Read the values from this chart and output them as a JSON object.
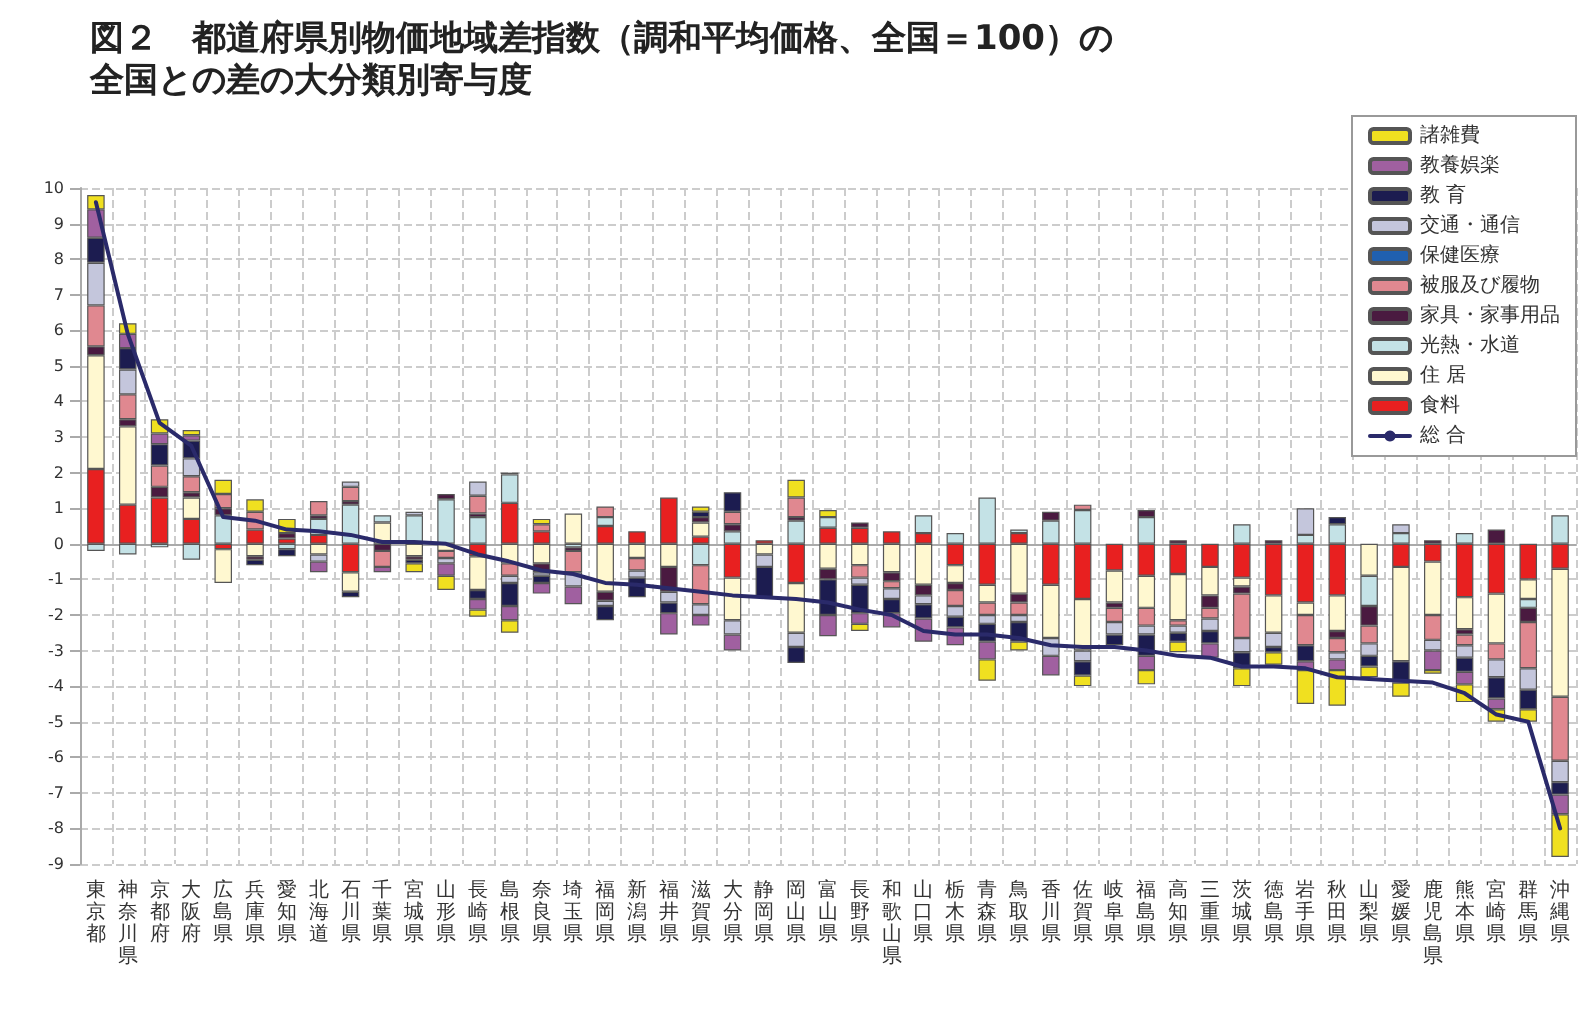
{
  "chart_data": {
    "type": "bar",
    "stacked": true,
    "title": "図２　都道府県別物価地域差指数（調和平均価格、全国＝100）の",
    "subtitle": "全国との差の大分類別寄与度",
    "categories": [
      "東京都",
      "神奈川県",
      "京都府",
      "大阪府",
      "広島県",
      "兵庫県",
      "愛知県",
      "北海道",
      "石川県",
      "千葉県",
      "宮城県",
      "山形県",
      "長崎県",
      "島根県",
      "奈良県",
      "埼玉県",
      "福岡県",
      "新潟県",
      "福井県",
      "滋賀県",
      "大分県",
      "静岡県",
      "岡山県",
      "富山県",
      "長野県",
      "和歌山県",
      "山口県",
      "栃木県",
      "青森県",
      "鳥取県",
      "香川県",
      "佐賀県",
      "岐阜県",
      "福島県",
      "高知県",
      "三重県",
      "茨城県",
      "徳島県",
      "岩手県",
      "秋田県",
      "山梨県",
      "愛媛県",
      "鹿児島県",
      "熊本県",
      "宮崎県",
      "群馬県",
      "沖縄県"
    ],
    "ylim": [
      -9,
      10
    ],
    "yticks": [
      -9,
      -8,
      -7,
      -6,
      -5,
      -4,
      -3,
      -2,
      -1,
      0,
      1,
      2,
      3,
      4,
      5,
      6,
      7,
      8,
      9,
      10
    ],
    "grid": true,
    "legend": "top right",
    "series": [
      {
        "name": "食料",
        "color": "#e82020",
        "values": [
          2.1,
          1.1,
          1.3,
          0.7,
          -0.15,
          0.4,
          0.15,
          0.25,
          -0.8,
          null,
          null,
          null,
          -0.35,
          1.15,
          0.35,
          null,
          0.5,
          0.35,
          1.3,
          0.2,
          -0.95,
          0.1,
          -1.1,
          0.45,
          0.45,
          0.35,
          0.3,
          -0.6,
          -1.15,
          0.3,
          -1.15,
          -1.55,
          -0.75,
          -0.9,
          -0.85,
          -0.65,
          -0.95,
          -1.45,
          -1.65,
          -1.45,
          null,
          -0.65,
          -0.5,
          -1.5,
          -1.4,
          -1.0,
          -0.7
        ]
      },
      {
        "name": "住 居",
        "color": "#fff8d0",
        "values": [
          3.2,
          2.2,
          null,
          0.6,
          -0.95,
          -0.35,
          null,
          -0.3,
          -0.55,
          0.6,
          -0.35,
          -0.2,
          -0.95,
          -0.55,
          -0.55,
          0.85,
          -1.35,
          -0.4,
          -0.65,
          0.4,
          -1.2,
          -0.3,
          -1.4,
          -0.7,
          -0.6,
          -0.8,
          -1.15,
          -0.5,
          -0.5,
          -1.4,
          -1.5,
          -1.45,
          -0.9,
          -0.9,
          -1.3,
          -0.8,
          -0.25,
          -1.05,
          -0.35,
          -1.0,
          -0.9,
          -2.65,
          -1.5,
          -0.9,
          -1.4,
          -0.55,
          -3.6
        ]
      },
      {
        "name": "光熱・水道",
        "color": "#c4e2e6",
        "values": [
          -0.2,
          -0.3,
          -0.1,
          -0.45,
          0.8,
          null,
          -0.15,
          0.45,
          1.1,
          0.2,
          0.8,
          1.25,
          0.75,
          0.8,
          null,
          -0.1,
          0.25,
          null,
          null,
          -0.6,
          0.35,
          null,
          0.65,
          0.3,
          null,
          null,
          0.5,
          0.3,
          1.3,
          0.1,
          0.65,
          0.95,
          null,
          0.75,
          null,
          null,
          0.55,
          null,
          0.25,
          0.55,
          -0.85,
          0.3,
          null,
          0.3,
          null,
          -0.25,
          0.8
        ]
      },
      {
        "name": "家具・家事用品",
        "color": "#4a1a40",
        "values": [
          0.25,
          0.2,
          0.3,
          0.15,
          0.2,
          -0.1,
          0.15,
          0.1,
          0.1,
          -0.2,
          -0.1,
          0.15,
          0.1,
          0.05,
          -0.25,
          -0.1,
          -0.25,
          null,
          -0.7,
          0.15,
          0.2,
          null,
          0.1,
          -0.3,
          0.15,
          -0.25,
          -0.3,
          -0.2,
          null,
          -0.25,
          0.25,
          null,
          -0.15,
          0.2,
          0.1,
          -0.35,
          -0.2,
          0.1,
          null,
          -0.2,
          -0.55,
          null,
          0.1,
          -0.15,
          0.4,
          -0.4,
          null
        ]
      },
      {
        "name": "被服及び履物",
        "color": "#e08890",
        "values": [
          1.15,
          0.7,
          0.6,
          0.45,
          0.4,
          0.5,
          null,
          0.4,
          0.4,
          -0.45,
          null,
          -0.2,
          0.5,
          -0.35,
          0.2,
          -0.6,
          0.3,
          -0.35,
          null,
          -1.1,
          0.35,
          null,
          0.55,
          null,
          -0.35,
          -0.2,
          null,
          -0.45,
          -0.35,
          -0.35,
          null,
          0.15,
          -0.4,
          -0.5,
          -0.15,
          -0.3,
          -1.25,
          null,
          -0.85,
          -0.4,
          -0.5,
          null,
          -0.7,
          -0.3,
          -0.45,
          -1.3,
          -1.8
        ]
      },
      {
        "name": "保健医療",
        "color": "#2060b0",
        "values": [
          null,
          null,
          null,
          null,
          null,
          null,
          null,
          null,
          null,
          null,
          null,
          null,
          null,
          null,
          null,
          null,
          null,
          null,
          null,
          null,
          null,
          null,
          null,
          null,
          null,
          null,
          null,
          null,
          null,
          null,
          null,
          null,
          null,
          null,
          null,
          null,
          null,
          null,
          null,
          null,
          null,
          null,
          null,
          null,
          null,
          null,
          null
        ]
      },
      {
        "name": "交通・通信",
        "color": "#c4c6dc",
        "values": [
          1.2,
          0.7,
          null,
          0.5,
          null,
          null,
          null,
          -0.2,
          0.15,
          null,
          0.1,
          -0.15,
          0.4,
          -0.2,
          -0.1,
          -0.4,
          -0.15,
          -0.2,
          -0.3,
          -0.3,
          -0.4,
          -0.35,
          -0.4,
          null,
          -0.2,
          -0.3,
          -0.25,
          -0.3,
          -0.25,
          -0.2,
          -0.5,
          -0.3,
          -0.35,
          -0.25,
          -0.2,
          -0.35,
          -0.4,
          -0.4,
          0.75,
          -0.2,
          -0.35,
          0.25,
          -0.3,
          -0.35,
          -0.5,
          -0.6,
          -0.6
        ]
      },
      {
        "name": "教 育",
        "color": "#1c1c50",
        "values": [
          0.7,
          0.6,
          0.6,
          0.5,
          null,
          -0.15,
          -0.2,
          null,
          -0.15,
          null,
          -0.1,
          null,
          -0.25,
          -0.65,
          -0.2,
          null,
          -0.4,
          -0.55,
          -0.3,
          0.15,
          0.55,
          -0.85,
          -0.45,
          -1.0,
          -0.8,
          -0.4,
          -0.4,
          -0.3,
          -0.5,
          -0.55,
          null,
          -0.4,
          -0.3,
          -0.6,
          -0.25,
          -0.35,
          -0.45,
          -0.15,
          -0.45,
          0.2,
          -0.3,
          -0.6,
          null,
          -0.4,
          -0.6,
          -0.55,
          -0.35
        ]
      },
      {
        "name": "教養娯楽",
        "color": "#a060a0",
        "values": [
          0.8,
          0.4,
          0.3,
          0.15,
          null,
          null,
          null,
          -0.3,
          null,
          -0.15,
          null,
          -0.35,
          -0.3,
          -0.4,
          -0.3,
          -0.5,
          null,
          null,
          -0.6,
          -0.3,
          -0.45,
          null,
          null,
          -0.6,
          -0.3,
          -0.4,
          -0.65,
          -0.5,
          -0.5,
          null,
          -0.55,
          null,
          null,
          -0.4,
          null,
          -0.4,
          null,
          null,
          -0.25,
          -0.3,
          null,
          null,
          -0.55,
          -0.35,
          -0.3,
          null,
          -0.55
        ]
      },
      {
        "name": "諸雑費",
        "color": "#f0e020",
        "values": [
          0.4,
          0.3,
          0.4,
          0.15,
          0.4,
          0.35,
          0.4,
          null,
          null,
          null,
          -0.25,
          -0.4,
          -0.2,
          -0.35,
          0.15,
          null,
          null,
          null,
          null,
          0.15,
          null,
          null,
          0.5,
          0.2,
          -0.2,
          null,
          null,
          null,
          -0.6,
          -0.25,
          null,
          -0.3,
          null,
          -0.4,
          -0.3,
          null,
          -0.5,
          -0.35,
          -0.95,
          -1.0,
          -0.3,
          -0.4,
          -0.1,
          -0.5,
          -0.35,
          -0.35,
          -1.2
        ]
      },
      {
        "name": "総 合",
        "type": "line",
        "color": "#2a2a6a",
        "values": [
          9.6,
          5.9,
          3.4,
          2.75,
          0.75,
          0.65,
          0.4,
          0.35,
          0.25,
          0.05,
          0.05,
          0.0,
          -0.3,
          -0.5,
          -0.75,
          -0.85,
          -1.1,
          -1.15,
          -1.25,
          -1.35,
          -1.45,
          -1.5,
          -1.55,
          -1.65,
          -1.85,
          -2.0,
          -2.45,
          -2.55,
          -2.55,
          -2.65,
          -2.85,
          -2.9,
          -2.9,
          -3.0,
          -3.15,
          -3.2,
          -3.45,
          -3.45,
          -3.5,
          -3.75,
          -3.8,
          -3.85,
          -3.9,
          -4.2,
          -4.8,
          -5.0,
          -8.0
        ]
      }
    ]
  }
}
